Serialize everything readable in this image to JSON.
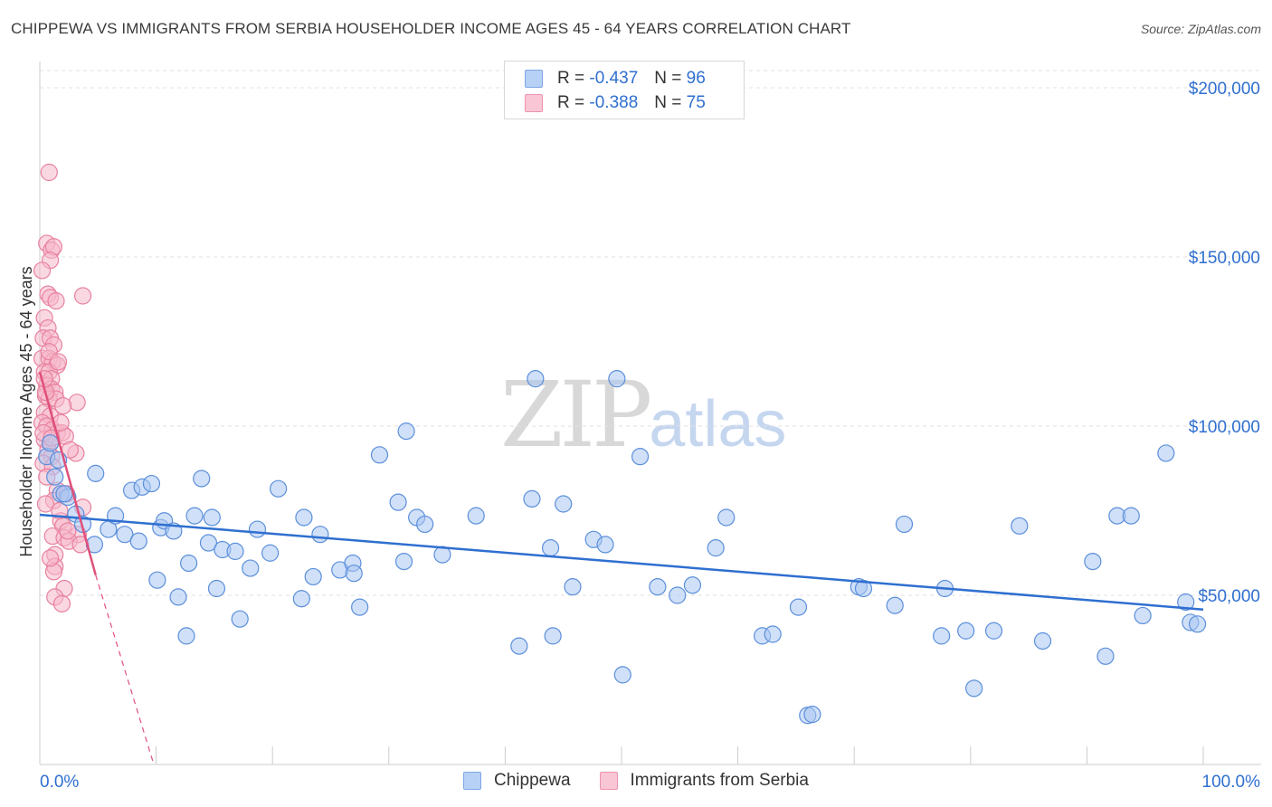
{
  "title": "CHIPPEWA VS IMMIGRANTS FROM SERBIA HOUSEHOLDER INCOME AGES 45 - 64 YEARS CORRELATION CHART",
  "source": "Source: ZipAtlas.com",
  "watermark": {
    "zip": "ZIP",
    "atlas": "atlas"
  },
  "legend": [
    {
      "r_label": "R = ",
      "r_value": "-0.437",
      "n_label": "N = ",
      "n_value": "96"
    },
    {
      "r_label": "R = ",
      "r_value": "-0.388",
      "n_label": "N = ",
      "n_value": "75"
    }
  ],
  "colors": {
    "blue_fill": "#a9c6f2",
    "blue_stroke": "#5b8fdb",
    "blue_line": "#2f6fd0",
    "pink_fill": "#f5b8cb",
    "pink_stroke": "#e8809f",
    "pink_line": "#e0507a",
    "axis_label": "#2f6fd0",
    "grid": "#e2e2e2"
  },
  "chart_data": {
    "type": "scatter",
    "title": "CHIPPEWA VS IMMIGRANTS FROM SERBIA HOUSEHOLDER INCOME AGES 45 - 64 YEARS CORRELATION CHART",
    "xlabel": "",
    "ylabel": "Householder Income Ages 45 - 64 years",
    "xlim": [
      0,
      100
    ],
    "ylim": [
      0,
      207000
    ],
    "x_tick_labels": [
      "0.0%",
      "100.0%"
    ],
    "y_ticks": [
      50000,
      100000,
      150000,
      200000
    ],
    "y_tick_labels": [
      "$50,000",
      "$100,000",
      "$150,000",
      "$200,000"
    ],
    "series": [
      {
        "name": "Chippewa",
        "trend": {
          "x0": 0,
          "y0": 73800,
          "x1": 100,
          "y1": 45800
        },
        "points": [
          [
            0.6,
            91000
          ],
          [
            1.3,
            85000
          ],
          [
            1.8,
            80000
          ],
          [
            2.4,
            79000
          ],
          [
            3.1,
            74000
          ],
          [
            3.7,
            71000
          ],
          [
            4.7,
            65000
          ],
          [
            4.8,
            86000
          ],
          [
            5.9,
            69500
          ],
          [
            6.5,
            73500
          ],
          [
            7.3,
            68000
          ],
          [
            7.9,
            81000
          ],
          [
            8.5,
            66000
          ],
          [
            8.8,
            82000
          ],
          [
            9.6,
            83000
          ],
          [
            10.1,
            54500
          ],
          [
            10.4,
            70000
          ],
          [
            10.7,
            72000
          ],
          [
            11.5,
            69000
          ],
          [
            11.9,
            49500
          ],
          [
            12.6,
            38000
          ],
          [
            12.8,
            59500
          ],
          [
            13.3,
            73500
          ],
          [
            13.9,
            84500
          ],
          [
            14.5,
            65500
          ],
          [
            14.8,
            73000
          ],
          [
            15.2,
            52000
          ],
          [
            15.7,
            63500
          ],
          [
            16.8,
            63000
          ],
          [
            17.2,
            43000
          ],
          [
            18.1,
            58000
          ],
          [
            18.7,
            69500
          ],
          [
            19.8,
            62500
          ],
          [
            20.5,
            81500
          ],
          [
            22.5,
            49000
          ],
          [
            22.7,
            73000
          ],
          [
            23.5,
            55500
          ],
          [
            24.1,
            68000
          ],
          [
            25.8,
            57500
          ],
          [
            26.9,
            59500
          ],
          [
            27.0,
            56500
          ],
          [
            27.5,
            46500
          ],
          [
            29.2,
            91500
          ],
          [
            30.8,
            77500
          ],
          [
            31.3,
            60000
          ],
          [
            31.5,
            98500
          ],
          [
            32.4,
            73000
          ],
          [
            33.1,
            71000
          ],
          [
            34.6,
            62000
          ],
          [
            37.5,
            73500
          ],
          [
            41.2,
            35000
          ],
          [
            42.3,
            78500
          ],
          [
            42.6,
            114000
          ],
          [
            43.9,
            64000
          ],
          [
            44.1,
            38000
          ],
          [
            45.0,
            77000
          ],
          [
            45.8,
            52500
          ],
          [
            47.6,
            66500
          ],
          [
            48.6,
            65000
          ],
          [
            49.6,
            114000
          ],
          [
            50.1,
            26500
          ],
          [
            51.6,
            91000
          ],
          [
            53.1,
            52500
          ],
          [
            54.8,
            50000
          ],
          [
            56.1,
            53000
          ],
          [
            58.1,
            64000
          ],
          [
            59.0,
            73000
          ],
          [
            62.1,
            38000
          ],
          [
            63.0,
            38500
          ],
          [
            65.2,
            46500
          ],
          [
            66.0,
            14500
          ],
          [
            66.4,
            14800
          ],
          [
            70.4,
            52500
          ],
          [
            70.8,
            52000
          ],
          [
            73.5,
            47000
          ],
          [
            74.3,
            71000
          ],
          [
            77.5,
            38000
          ],
          [
            77.8,
            52000
          ],
          [
            79.6,
            39500
          ],
          [
            80.3,
            22500
          ],
          [
            82.0,
            39500
          ],
          [
            84.2,
            70500
          ],
          [
            86.2,
            36500
          ],
          [
            90.5,
            60000
          ],
          [
            91.6,
            32000
          ],
          [
            92.6,
            73500
          ],
          [
            93.8,
            73500
          ],
          [
            94.8,
            44000
          ],
          [
            96.8,
            92000
          ],
          [
            98.5,
            48000
          ],
          [
            98.9,
            42000
          ],
          [
            99.5,
            41500
          ],
          [
            0.9,
            95000
          ],
          [
            1.6,
            90000
          ],
          [
            2.1,
            80000
          ]
        ]
      },
      {
        "name": "Immigrants from Serbia",
        "trend": {
          "x0": 0,
          "y0": 116000,
          "x1": 4.8,
          "y1": 56000
        },
        "trend_extension": {
          "x0": 4.8,
          "y0": 56000,
          "x1": 9.8,
          "y1": 0
        },
        "points": [
          [
            0.8,
            175000
          ],
          [
            0.6,
            154000
          ],
          [
            1.0,
            152000
          ],
          [
            1.2,
            153000
          ],
          [
            0.9,
            149000
          ],
          [
            0.2,
            146000
          ],
          [
            0.7,
            139000
          ],
          [
            0.9,
            138000
          ],
          [
            1.4,
            137000
          ],
          [
            3.7,
            138500
          ],
          [
            0.4,
            132000
          ],
          [
            0.7,
            129000
          ],
          [
            0.3,
            126000
          ],
          [
            0.9,
            126000
          ],
          [
            1.2,
            124000
          ],
          [
            0.2,
            120000
          ],
          [
            0.8,
            120000
          ],
          [
            1.1,
            119000
          ],
          [
            1.5,
            118000
          ],
          [
            0.4,
            116000
          ],
          [
            0.8,
            116000
          ],
          [
            1.0,
            114000
          ],
          [
            0.6,
            112000
          ],
          [
            1.0,
            111000
          ],
          [
            1.3,
            110000
          ],
          [
            0.5,
            109000
          ],
          [
            0.8,
            108000
          ],
          [
            1.4,
            108000
          ],
          [
            3.2,
            107000
          ],
          [
            2.0,
            106000
          ],
          [
            0.4,
            104000
          ],
          [
            0.9,
            103000
          ],
          [
            0.2,
            101000
          ],
          [
            0.6,
            100000
          ],
          [
            1.1,
            99000
          ],
          [
            1.5,
            98000
          ],
          [
            1.9,
            98000
          ],
          [
            2.2,
            97000
          ],
          [
            0.4,
            96000
          ],
          [
            0.9,
            95000
          ],
          [
            0.7,
            93000
          ],
          [
            3.1,
            92000
          ],
          [
            1.0,
            91000
          ],
          [
            0.3,
            89000
          ],
          [
            1.1,
            88000
          ],
          [
            1.5,
            81000
          ],
          [
            2.3,
            80000
          ],
          [
            1.2,
            78000
          ],
          [
            0.5,
            77000
          ],
          [
            3.7,
            76000
          ],
          [
            1.8,
            72000
          ],
          [
            2.0,
            70500
          ],
          [
            3.3,
            68000
          ],
          [
            1.1,
            67500
          ],
          [
            2.1,
            67000
          ],
          [
            2.5,
            66000
          ],
          [
            3.5,
            65000
          ],
          [
            1.3,
            62000
          ],
          [
            1.3,
            58500
          ],
          [
            1.2,
            57000
          ],
          [
            2.1,
            52000
          ],
          [
            1.3,
            49500
          ],
          [
            1.9,
            47500
          ],
          [
            0.3,
            98000
          ],
          [
            0.5,
            110000
          ],
          [
            0.8,
            122000
          ],
          [
            1.6,
            119000
          ],
          [
            0.6,
            85000
          ],
          [
            2.6,
            93000
          ],
          [
            1.8,
            101000
          ],
          [
            0.4,
            114000
          ],
          [
            1.0,
            96500
          ],
          [
            1.7,
            75000
          ],
          [
            2.4,
            69000
          ],
          [
            0.9,
            61000
          ]
        ]
      }
    ]
  },
  "bottom_legend": [
    "Chippewa",
    "Immigrants from Serbia"
  ]
}
